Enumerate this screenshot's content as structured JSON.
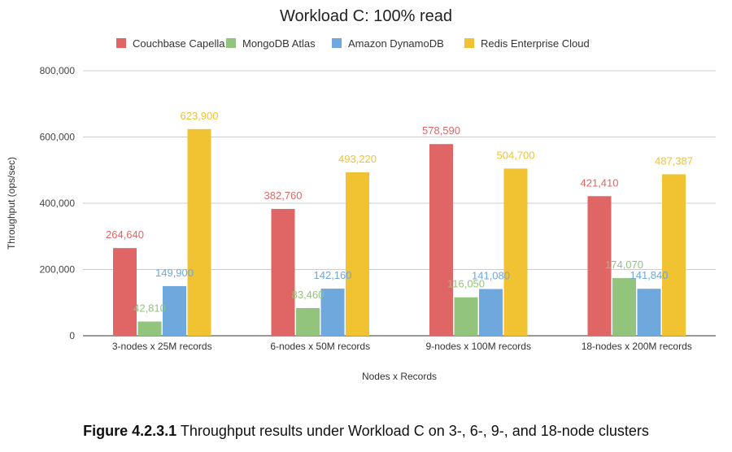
{
  "chart_data": {
    "type": "bar",
    "title": "Workload C: 100% read",
    "xlabel": "Nodes x Records",
    "ylabel": "Throughput (ops/sec)",
    "ylim": [
      0,
      800000
    ],
    "yticks": [
      0,
      200000,
      400000,
      600000,
      800000
    ],
    "ytick_labels": [
      "0",
      "200,000",
      "400,000",
      "600,000",
      "800,000"
    ],
    "grid": true,
    "legend_position": "top",
    "categories": [
      "3-nodes x 25M records",
      "6-nodes x 50M records",
      "9-nodes x 100M records",
      "18-nodes x 200M records"
    ],
    "series": [
      {
        "name": "Couchbase Capella",
        "color": "#e06666",
        "values": [
          264640,
          382760,
          578590,
          421410
        ],
        "labels": [
          "264,640",
          "382,760",
          "578,590",
          "421,410"
        ]
      },
      {
        "name": "MongoDB Atlas",
        "color": "#93c47d",
        "values": [
          42810,
          83460,
          116050,
          174070
        ],
        "labels": [
          "42,810",
          "83,460",
          "116,050",
          "174,070"
        ]
      },
      {
        "name": "Amazon DynamoDB",
        "color": "#6fa8dc",
        "values": [
          149900,
          142160,
          141080,
          141840
        ],
        "labels": [
          "149,900",
          "142,160",
          "141,080",
          "141,840"
        ]
      },
      {
        "name": "Redis Enterprise Cloud",
        "color": "#f1c232",
        "values": [
          623900,
          493220,
          504700,
          487387
        ],
        "labels": [
          "623,900",
          "493,220",
          "504,700",
          "487,387"
        ]
      }
    ]
  },
  "caption": {
    "figure_label": "Figure 4.2.3.1",
    "text": " Throughput results under Workload C on 3-, 6-, 9-, and 18-node clusters"
  }
}
